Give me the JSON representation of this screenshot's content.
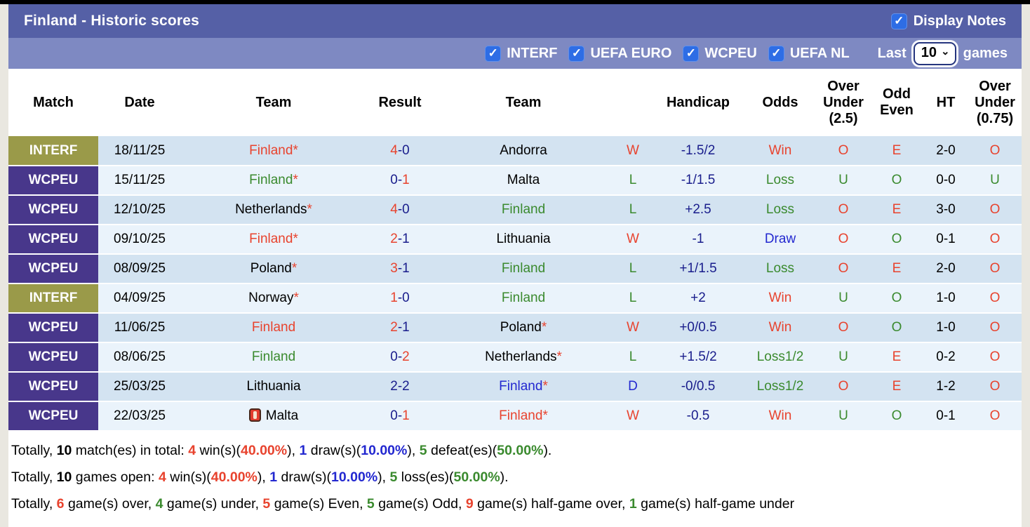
{
  "title_bar": {
    "title": "Finland - Historic scores",
    "display_notes_label": "Display Notes",
    "display_notes_checked": true
  },
  "filter_bar": {
    "competitions": [
      {
        "label": "INTERF",
        "checked": true
      },
      {
        "label": "UEFA EURO",
        "checked": true
      },
      {
        "label": "WCPEU",
        "checked": true
      },
      {
        "label": "UEFA NL",
        "checked": true
      }
    ],
    "last_label": "Last",
    "games_count": "10",
    "games_label": "games"
  },
  "colors": {
    "bar_primary": "#5560a6",
    "bar_secondary": "#7e89c2",
    "badge_interf": "#9a9a49",
    "badge_wcpeu": "#48378b",
    "row_odd_bg": "#d3e3f1",
    "row_even_bg": "#eaf3fb",
    "checkbox_blue": "#2e6de5",
    "win_red": "#e8432e",
    "loss_green": "#3a8a2e",
    "score_navy": "#191d8c",
    "draw_blue": "#2328d0"
  },
  "table": {
    "headers": [
      "Match",
      "Date",
      "Team",
      "Result",
      "Team",
      "",
      "Handicap",
      "Odds",
      "Over Under (2.5)",
      "Odd Even",
      "HT",
      "Over Under (0.75)"
    ],
    "rows": [
      {
        "competition": "INTERF",
        "date": "18/11/25",
        "team1": {
          "name": "Finland",
          "color": "red",
          "star": true,
          "red_card": false
        },
        "result": {
          "s1": "4",
          "c1": "red",
          "s2": "0",
          "c2": "navy"
        },
        "team2": {
          "name": "Andorra",
          "color": "black",
          "star": false,
          "red_card": false
        },
        "wl": {
          "t": "W",
          "c": "red"
        },
        "handicap": "-1.5/2",
        "odds": {
          "t": "Win",
          "c": "red"
        },
        "ou25": {
          "t": "O",
          "c": "red"
        },
        "oe": {
          "t": "E",
          "c": "red"
        },
        "ht": "2-0",
        "ou075": {
          "t": "O",
          "c": "red"
        }
      },
      {
        "competition": "WCPEU",
        "date": "15/11/25",
        "team1": {
          "name": "Finland",
          "color": "green",
          "star": true,
          "red_card": false
        },
        "result": {
          "s1": "0",
          "c1": "navy",
          "s2": "1",
          "c2": "red"
        },
        "team2": {
          "name": "Malta",
          "color": "black",
          "star": false,
          "red_card": false
        },
        "wl": {
          "t": "L",
          "c": "green"
        },
        "handicap": "-1/1.5",
        "odds": {
          "t": "Loss",
          "c": "green"
        },
        "ou25": {
          "t": "U",
          "c": "green"
        },
        "oe": {
          "t": "O",
          "c": "green"
        },
        "ht": "0-0",
        "ou075": {
          "t": "U",
          "c": "green"
        }
      },
      {
        "competition": "WCPEU",
        "date": "12/10/25",
        "team1": {
          "name": "Netherlands",
          "color": "black",
          "star": true,
          "red_card": false
        },
        "result": {
          "s1": "4",
          "c1": "red",
          "s2": "0",
          "c2": "navy"
        },
        "team2": {
          "name": "Finland",
          "color": "green",
          "star": false,
          "red_card": false
        },
        "wl": {
          "t": "L",
          "c": "green"
        },
        "handicap": "+2.5",
        "odds": {
          "t": "Loss",
          "c": "green"
        },
        "ou25": {
          "t": "O",
          "c": "red"
        },
        "oe": {
          "t": "E",
          "c": "red"
        },
        "ht": "3-0",
        "ou075": {
          "t": "O",
          "c": "red"
        }
      },
      {
        "competition": "WCPEU",
        "date": "09/10/25",
        "team1": {
          "name": "Finland",
          "color": "red",
          "star": true,
          "red_card": false
        },
        "result": {
          "s1": "2",
          "c1": "red",
          "s2": "1",
          "c2": "navy"
        },
        "team2": {
          "name": "Lithuania",
          "color": "black",
          "star": false,
          "red_card": false
        },
        "wl": {
          "t": "W",
          "c": "red"
        },
        "handicap": "-1",
        "odds": {
          "t": "Draw",
          "c": "blue"
        },
        "ou25": {
          "t": "O",
          "c": "red"
        },
        "oe": {
          "t": "O",
          "c": "green"
        },
        "ht": "0-1",
        "ou075": {
          "t": "O",
          "c": "red"
        }
      },
      {
        "competition": "WCPEU",
        "date": "08/09/25",
        "team1": {
          "name": "Poland",
          "color": "black",
          "star": true,
          "red_card": false
        },
        "result": {
          "s1": "3",
          "c1": "red",
          "s2": "1",
          "c2": "navy"
        },
        "team2": {
          "name": "Finland",
          "color": "green",
          "star": false,
          "red_card": false
        },
        "wl": {
          "t": "L",
          "c": "green"
        },
        "handicap": "+1/1.5",
        "odds": {
          "t": "Loss",
          "c": "green"
        },
        "ou25": {
          "t": "O",
          "c": "red"
        },
        "oe": {
          "t": "E",
          "c": "red"
        },
        "ht": "2-0",
        "ou075": {
          "t": "O",
          "c": "red"
        }
      },
      {
        "competition": "INTERF",
        "date": "04/09/25",
        "team1": {
          "name": "Norway",
          "color": "black",
          "star": true,
          "red_card": false
        },
        "result": {
          "s1": "1",
          "c1": "red",
          "s2": "0",
          "c2": "navy"
        },
        "team2": {
          "name": "Finland",
          "color": "green",
          "star": false,
          "red_card": false
        },
        "wl": {
          "t": "L",
          "c": "green"
        },
        "handicap": "+2",
        "odds": {
          "t": "Win",
          "c": "red"
        },
        "ou25": {
          "t": "U",
          "c": "green"
        },
        "oe": {
          "t": "O",
          "c": "green"
        },
        "ht": "1-0",
        "ou075": {
          "t": "O",
          "c": "red"
        }
      },
      {
        "competition": "WCPEU",
        "date": "11/06/25",
        "team1": {
          "name": "Finland",
          "color": "red",
          "star": false,
          "red_card": false
        },
        "result": {
          "s1": "2",
          "c1": "red",
          "s2": "1",
          "c2": "navy"
        },
        "team2": {
          "name": "Poland",
          "color": "black",
          "star": true,
          "red_card": false
        },
        "wl": {
          "t": "W",
          "c": "red"
        },
        "handicap": "+0/0.5",
        "odds": {
          "t": "Win",
          "c": "red"
        },
        "ou25": {
          "t": "O",
          "c": "red"
        },
        "oe": {
          "t": "O",
          "c": "green"
        },
        "ht": "1-0",
        "ou075": {
          "t": "O",
          "c": "red"
        }
      },
      {
        "competition": "WCPEU",
        "date": "08/06/25",
        "team1": {
          "name": "Finland",
          "color": "green",
          "star": false,
          "red_card": false
        },
        "result": {
          "s1": "0",
          "c1": "navy",
          "s2": "2",
          "c2": "red"
        },
        "team2": {
          "name": "Netherlands",
          "color": "black",
          "star": true,
          "red_card": false
        },
        "wl": {
          "t": "L",
          "c": "green"
        },
        "handicap": "+1.5/2",
        "odds": {
          "t": "Loss1/2",
          "c": "green"
        },
        "ou25": {
          "t": "U",
          "c": "green"
        },
        "oe": {
          "t": "E",
          "c": "red"
        },
        "ht": "0-2",
        "ou075": {
          "t": "O",
          "c": "red"
        }
      },
      {
        "competition": "WCPEU",
        "date": "25/03/25",
        "team1": {
          "name": "Lithuania",
          "color": "black",
          "star": false,
          "red_card": false
        },
        "result": {
          "s1": "2",
          "c1": "navy",
          "s2": "2",
          "c2": "navy"
        },
        "team2": {
          "name": "Finland",
          "color": "blue",
          "star": true,
          "red_card": false
        },
        "wl": {
          "t": "D",
          "c": "blue"
        },
        "handicap": "-0/0.5",
        "odds": {
          "t": "Loss1/2",
          "c": "green"
        },
        "ou25": {
          "t": "O",
          "c": "red"
        },
        "oe": {
          "t": "E",
          "c": "red"
        },
        "ht": "1-2",
        "ou075": {
          "t": "O",
          "c": "red"
        }
      },
      {
        "competition": "WCPEU",
        "date": "22/03/25",
        "team1": {
          "name": "Malta",
          "color": "black",
          "star": false,
          "red_card": true
        },
        "result": {
          "s1": "0",
          "c1": "navy",
          "s2": "1",
          "c2": "red"
        },
        "team2": {
          "name": "Finland",
          "color": "red",
          "star": true,
          "red_card": false
        },
        "wl": {
          "t": "W",
          "c": "red"
        },
        "handicap": "-0.5",
        "odds": {
          "t": "Win",
          "c": "red"
        },
        "ou25": {
          "t": "U",
          "c": "green"
        },
        "oe": {
          "t": "O",
          "c": "green"
        },
        "ht": "0-1",
        "ou075": {
          "t": "O",
          "c": "red"
        }
      }
    ]
  },
  "footer": {
    "lines": [
      {
        "segments": [
          {
            "t": "Totally, ",
            "c": "black",
            "b": false
          },
          {
            "t": "10",
            "c": "black",
            "b": true
          },
          {
            "t": " match(es) in total: ",
            "c": "black",
            "b": false
          },
          {
            "t": "4",
            "c": "red",
            "b": true
          },
          {
            "t": " win(s)(",
            "c": "black",
            "b": false
          },
          {
            "t": "40.00%",
            "c": "red",
            "b": true
          },
          {
            "t": "), ",
            "c": "black",
            "b": false
          },
          {
            "t": "1",
            "c": "blue",
            "b": true
          },
          {
            "t": " draw(s)(",
            "c": "black",
            "b": false
          },
          {
            "t": "10.00%",
            "c": "blue",
            "b": true
          },
          {
            "t": "), ",
            "c": "black",
            "b": false
          },
          {
            "t": "5",
            "c": "green",
            "b": true
          },
          {
            "t": " defeat(es)(",
            "c": "black",
            "b": false
          },
          {
            "t": "50.00%",
            "c": "green",
            "b": true
          },
          {
            "t": ").",
            "c": "black",
            "b": false
          }
        ]
      },
      {
        "segments": [
          {
            "t": "Totally, ",
            "c": "black",
            "b": false
          },
          {
            "t": "10",
            "c": "black",
            "b": true
          },
          {
            "t": " games open: ",
            "c": "black",
            "b": false
          },
          {
            "t": "4",
            "c": "red",
            "b": true
          },
          {
            "t": " win(s)(",
            "c": "black",
            "b": false
          },
          {
            "t": "40.00%",
            "c": "red",
            "b": true
          },
          {
            "t": "), ",
            "c": "black",
            "b": false
          },
          {
            "t": "1",
            "c": "blue",
            "b": true
          },
          {
            "t": " draw(s)(",
            "c": "black",
            "b": false
          },
          {
            "t": "10.00%",
            "c": "blue",
            "b": true
          },
          {
            "t": "), ",
            "c": "black",
            "b": false
          },
          {
            "t": "5",
            "c": "green",
            "b": true
          },
          {
            "t": " loss(es)(",
            "c": "black",
            "b": false
          },
          {
            "t": "50.00%",
            "c": "green",
            "b": true
          },
          {
            "t": ").",
            "c": "black",
            "b": false
          }
        ]
      },
      {
        "segments": [
          {
            "t": "Totally, ",
            "c": "black",
            "b": false
          },
          {
            "t": "6",
            "c": "red",
            "b": true
          },
          {
            "t": " game(s) over, ",
            "c": "black",
            "b": false
          },
          {
            "t": "4",
            "c": "green",
            "b": true
          },
          {
            "t": " game(s) under, ",
            "c": "black",
            "b": false
          },
          {
            "t": "5",
            "c": "red",
            "b": true
          },
          {
            "t": " game(s) Even, ",
            "c": "black",
            "b": false
          },
          {
            "t": "5",
            "c": "green",
            "b": true
          },
          {
            "t": " game(s) Odd, ",
            "c": "black",
            "b": false
          },
          {
            "t": "9",
            "c": "red",
            "b": true
          },
          {
            "t": " game(s) half-game over, ",
            "c": "black",
            "b": false
          },
          {
            "t": "1",
            "c": "green",
            "b": true
          },
          {
            "t": " game(s) half-game under",
            "c": "black",
            "b": false
          }
        ]
      }
    ]
  }
}
